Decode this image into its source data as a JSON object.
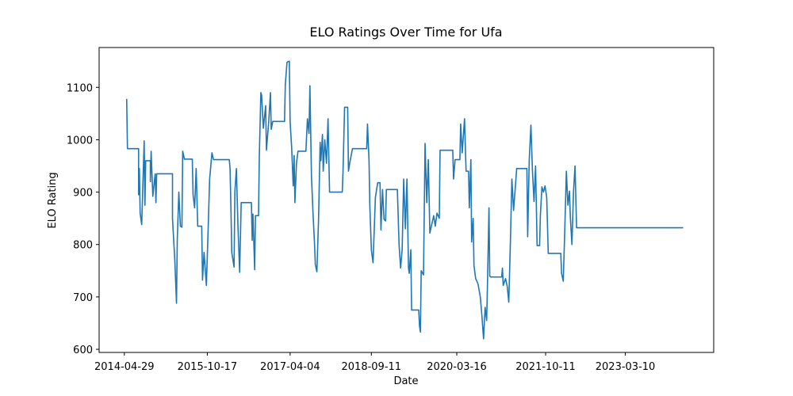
{
  "chart_data": {
    "type": "line",
    "title": "ELO Ratings Over Time for Ufa",
    "x_label": "Date",
    "y_label": "ELO Rating",
    "color": "#1f77b4",
    "xlim": [
      "2013-11-17",
      "2024-10-01"
    ],
    "xticks": [
      "2014-04-29",
      "2015-10-17",
      "2017-04-04",
      "2018-09-11",
      "2020-03-16",
      "2021-10-11",
      "2023-03-10"
    ],
    "ylim": [
      594,
      1176
    ],
    "yticks": [
      600,
      700,
      800,
      900,
      1000,
      1100
    ],
    "x": [
      "2014-05-14",
      "2014-05-19",
      "2014-07-30",
      "2014-07-30",
      "2014-08-04",
      "2014-08-09",
      "2014-08-19",
      "2014-08-24",
      "2014-09-04",
      "2014-09-09",
      "2014-09-14",
      "2014-10-14",
      "2014-10-14",
      "2014-10-19",
      "2014-10-30",
      "2014-11-14",
      "2014-11-19",
      "2014-11-24",
      "2015-03-06",
      "2015-03-06",
      "2015-03-21",
      "2015-04-01",
      "2015-04-06",
      "2015-04-16",
      "2015-04-26",
      "2015-05-06",
      "2015-05-11",
      "2015-05-22",
      "2015-07-12",
      "2015-07-17",
      "2015-07-27",
      "2015-08-06",
      "2015-08-16",
      "2015-09-11",
      "2015-09-16",
      "2015-09-26",
      "2015-10-11",
      "2015-10-22",
      "2015-11-01",
      "2015-11-16",
      "2015-11-26",
      "2016-03-07",
      "2016-03-12",
      "2016-03-18",
      "2016-03-23",
      "2016-04-07",
      "2016-04-12",
      "2016-04-22",
      "2016-05-02",
      "2016-05-13",
      "2016-05-23",
      "2016-07-28",
      "2016-08-02",
      "2016-08-07",
      "2016-08-18",
      "2016-08-23",
      "2016-09-12",
      "2016-09-17",
      "2016-09-27",
      "2016-10-02",
      "2016-10-13",
      "2016-10-28",
      "2016-11-02",
      "2016-11-17",
      "2016-11-28",
      "2016-12-03",
      "2016-12-13",
      "2017-02-27",
      "2017-03-04",
      "2017-03-15",
      "2017-03-30",
      "2017-04-04",
      "2017-04-14",
      "2017-04-24",
      "2017-04-30",
      "2017-05-05",
      "2017-05-15",
      "2017-05-25",
      "2017-07-15",
      "2017-07-25",
      "2017-08-04",
      "2017-08-10",
      "2017-08-20",
      "2017-08-30",
      "2017-09-09",
      "2017-09-14",
      "2017-09-24",
      "2017-10-05",
      "2017-10-15",
      "2017-10-20",
      "2017-10-30",
      "2017-11-04",
      "2017-11-14",
      "2017-11-25",
      "2017-12-05",
      "2017-12-15",
      "2018-03-07",
      "2018-03-12",
      "2018-03-22",
      "2018-04-11",
      "2018-04-16",
      "2018-04-27",
      "2018-05-12",
      "2018-08-12",
      "2018-08-17",
      "2018-08-27",
      "2018-09-01",
      "2018-09-11",
      "2018-09-22",
      "2018-10-07",
      "2018-10-22",
      "2018-11-06",
      "2018-11-12",
      "2018-11-22",
      "2018-12-02",
      "2018-12-12",
      "2018-12-17",
      "2019-02-26",
      "2019-03-09",
      "2019-03-19",
      "2019-03-29",
      "2019-04-08",
      "2019-04-19",
      "2019-04-29",
      "2019-05-09",
      "2019-05-14",
      "2019-05-24",
      "2019-05-29",
      "2019-07-14",
      "2019-07-19",
      "2019-07-25",
      "2019-07-30",
      "2019-08-14",
      "2019-08-24",
      "2019-09-04",
      "2019-09-14",
      "2019-09-24",
      "2019-10-19",
      "2019-10-29",
      "2019-11-09",
      "2019-11-24",
      "2019-11-29",
      "2020-02-19",
      "2020-02-24",
      "2020-03-05",
      "2020-04-05",
      "2020-04-10",
      "2020-04-20",
      "2020-05-05",
      "2020-05-15",
      "2020-05-31",
      "2020-06-05",
      "2020-06-15",
      "2020-06-20",
      "2020-06-30",
      "2020-07-05",
      "2020-07-16",
      "2020-07-31",
      "2020-08-15",
      "2020-08-25",
      "2020-09-05",
      "2020-09-15",
      "2020-09-25",
      "2020-09-30",
      "2020-10-10",
      "2020-10-15",
      "2020-10-20",
      "2020-12-31",
      "2021-01-05",
      "2021-01-10",
      "2021-01-25",
      "2021-02-05",
      "2021-02-15",
      "2021-02-25",
      "2021-03-07",
      "2021-03-18",
      "2021-03-28",
      "2021-04-07",
      "2021-06-12",
      "2021-06-17",
      "2021-06-27",
      "2021-07-08",
      "2021-07-18",
      "2021-07-28",
      "2021-08-07",
      "2021-08-17",
      "2021-09-02",
      "2021-09-07",
      "2021-09-17",
      "2021-09-27",
      "2021-10-07",
      "2021-10-18",
      "2021-10-28",
      "2022-01-17",
      "2022-01-22",
      "2022-02-02",
      "2022-02-12",
      "2022-02-22",
      "2022-03-04",
      "2022-03-14",
      "2022-03-20",
      "2022-03-30",
      "2022-04-09",
      "2022-04-19",
      "2022-04-29",
      "2024-03-18"
    ],
    "values": [
      1078,
      983,
      983,
      895,
      945,
      860,
      838,
      885,
      998,
      875,
      960,
      960,
      920,
      978,
      892,
      935,
      880,
      935,
      935,
      850,
      770,
      688,
      810,
      900,
      835,
      833,
      978,
      963,
      963,
      895,
      870,
      945,
      835,
      835,
      732,
      785,
      722,
      825,
      925,
      975,
      962,
      962,
      945,
      865,
      785,
      757,
      900,
      945,
      835,
      747,
      880,
      880,
      808,
      858,
      752,
      855,
      855,
      968,
      1090,
      1085,
      1022,
      1065,
      980,
      1035,
      1090,
      1020,
      1035,
      1035,
      1105,
      1148,
      1150,
      1035,
      985,
      912,
      970,
      880,
      955,
      978,
      978,
      1040,
      1012,
      1103,
      930,
      860,
      800,
      762,
      748,
      850,
      995,
      960,
      1010,
      940,
      1000,
      955,
      1040,
      900,
      900,
      940,
      1062,
      1062,
      940,
      960,
      983,
      983,
      1030,
      960,
      875,
      790,
      765,
      890,
      918,
      918,
      828,
      905,
      848,
      845,
      905,
      905,
      800,
      755,
      790,
      925,
      830,
      925,
      755,
      745,
      790,
      675,
      675,
      645,
      633,
      750,
      742,
      993,
      880,
      962,
      822,
      855,
      835,
      860,
      850,
      980,
      980,
      925,
      962,
      962,
      1030,
      975,
      1040,
      940,
      940,
      870,
      962,
      805,
      850,
      760,
      735,
      725,
      700,
      665,
      620,
      680,
      655,
      720,
      870,
      740,
      738,
      738,
      755,
      722,
      735,
      720,
      690,
      800,
      925,
      865,
      905,
      945,
      945,
      815,
      960,
      1028,
      940,
      882,
      950,
      798,
      798,
      855,
      910,
      900,
      912,
      890,
      783,
      783,
      745,
      730,
      830,
      940,
      875,
      902,
      850,
      800,
      900,
      950,
      832,
      832
    ]
  }
}
